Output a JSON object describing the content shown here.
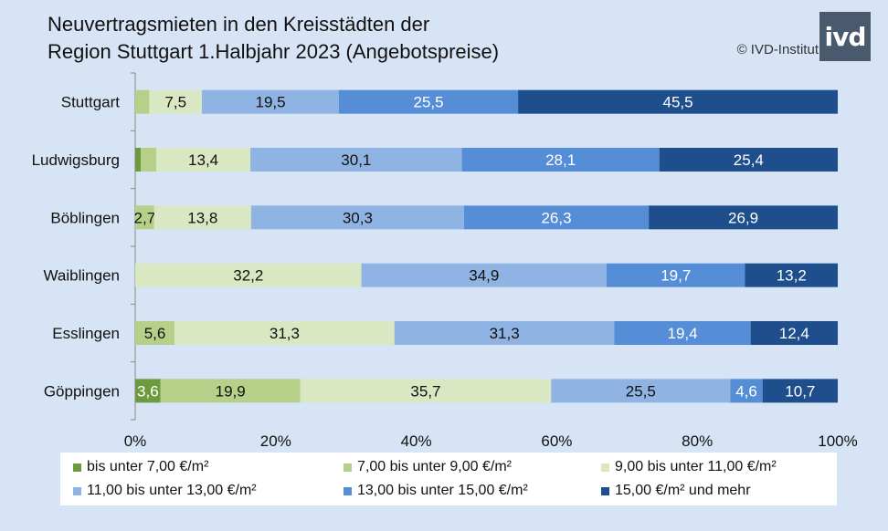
{
  "header": {
    "title_line1": "Neuvertragsmieten in den Kreisstädten der",
    "title_line2": "Region Stuttgart 1.Halbjahr 2023 (Angebotspreise)",
    "copyright": "© IVD-Institut",
    "logo_text": "ivd"
  },
  "chart_data": {
    "type": "bar",
    "orientation": "horizontal-stacked-100",
    "title": "Neuvertragsmieten in den Kreisstädten der Region Stuttgart 1.Halbjahr 2023 (Angebotspreise)",
    "categories": [
      "Stuttgart",
      "Ludwigsburg",
      "Böblingen",
      "Waiblingen",
      "Esslingen",
      "Göppingen"
    ],
    "x_ticks": [
      "0%",
      "20%",
      "40%",
      "60%",
      "80%",
      "100%"
    ],
    "xlim": [
      0,
      100
    ],
    "legend_position": "bottom",
    "series": [
      {
        "name": "bis unter 7,00 €/m²",
        "color": "#6e9a3e",
        "values": [
          0,
          0.8,
          0,
          0,
          0,
          3.6
        ],
        "labels": [
          "",
          "",
          "",
          "",
          "",
          "3,6"
        ]
      },
      {
        "name": "7,00 bis unter 9,00 €/m²",
        "color": "#b6d08a",
        "values": [
          2,
          2.2,
          2.7,
          0,
          5.6,
          19.9
        ],
        "labels": [
          "",
          "",
          "2,7",
          "",
          "5,6",
          "19,9"
        ]
      },
      {
        "name": "9,00 bis unter 11,00 €/m²",
        "color": "#d9e8c2",
        "values": [
          7.5,
          13.4,
          13.8,
          32.2,
          31.3,
          35.7
        ],
        "labels": [
          "7,5",
          "13,4",
          "13,8",
          "32,2",
          "31,3",
          "35,7"
        ]
      },
      {
        "name": "11,00 bis unter 13,00 €/m²",
        "color": "#8fb3e2",
        "values": [
          19.5,
          30.1,
          30.3,
          34.9,
          31.3,
          25.5
        ],
        "labels": [
          "19,5",
          "30,1",
          "30,3",
          "34,9",
          "31,3",
          "25,5"
        ]
      },
      {
        "name": "13,00 bis unter 15,00 €/m²",
        "color": "#558ed6",
        "values": [
          25.5,
          28.1,
          26.3,
          19.7,
          19.4,
          4.6
        ],
        "labels": [
          "25,5",
          "28,1",
          "26,3",
          "19,7",
          "19,4",
          "4,6"
        ]
      },
      {
        "name": "15,00 €/m² und mehr",
        "color": "#1f4e8c",
        "values": [
          45.5,
          25.4,
          26.9,
          13.2,
          12.4,
          10.7
        ],
        "labels": [
          "45,5",
          "25,4",
          "26,9",
          "13,2",
          "12,4",
          "10,7"
        ]
      }
    ]
  }
}
